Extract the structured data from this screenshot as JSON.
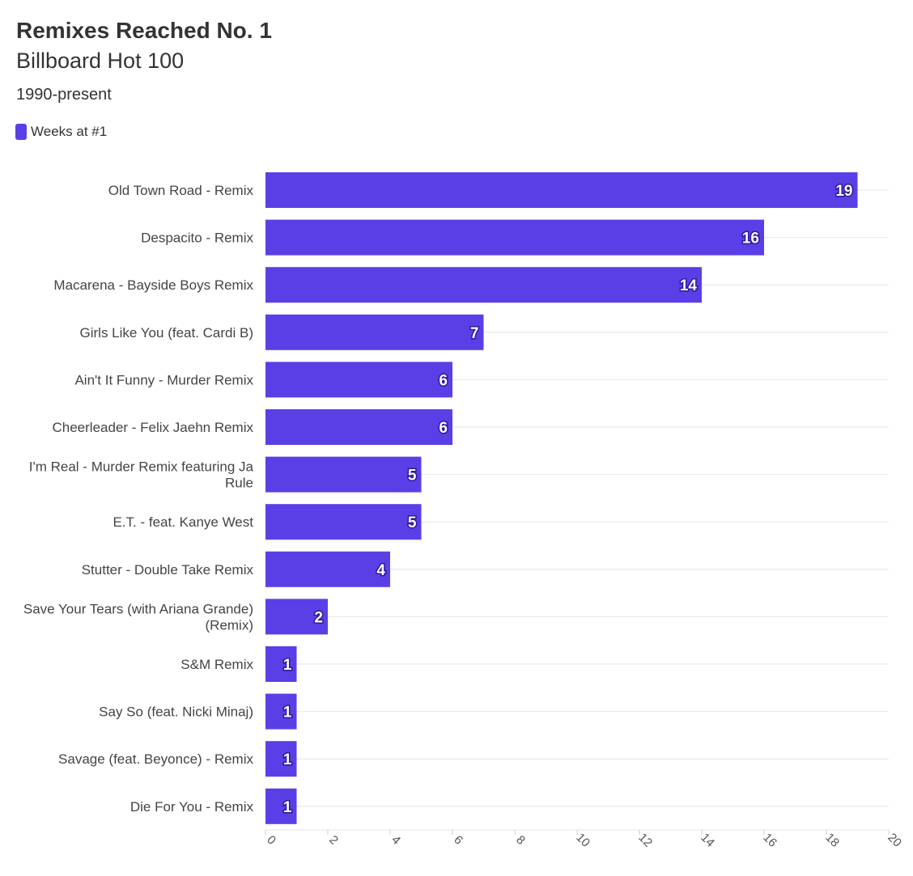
{
  "chart_data": {
    "type": "bar",
    "orientation": "horizontal",
    "title": "Remixes Reached No. 1",
    "subtitle": "Billboard Hot 100",
    "note": "1990-present",
    "categories": [
      "Old Town Road - Remix",
      "Despacito - Remix",
      "Macarena - Bayside Boys Remix",
      "Girls Like You (feat. Cardi B)",
      "Ain't It Funny - Murder Remix",
      "Cheerleader - Felix Jaehn Remix",
      "I'm Real - Murder Remix featuring Ja Rule",
      "E.T. - feat. Kanye West",
      "Stutter - Double Take Remix",
      "Save Your Tears (with Ariana Grande) (Remix)",
      "S&M Remix",
      "Say So (feat. Nicki Minaj)",
      "Savage (feat. Beyonce) - Remix",
      "Die For You - Remix"
    ],
    "series": [
      {
        "name": "Weeks at #1",
        "color": "#5a3fe6",
        "values": [
          19,
          16,
          14,
          7,
          6,
          6,
          5,
          5,
          4,
          2,
          1,
          1,
          1,
          1
        ]
      }
    ],
    "xlim": [
      0,
      20
    ],
    "xticks": [
      0,
      2,
      4,
      6,
      8,
      10,
      12,
      14,
      16,
      18,
      20
    ],
    "grid": true,
    "legend_position": "top-left",
    "data_labels": true
  }
}
